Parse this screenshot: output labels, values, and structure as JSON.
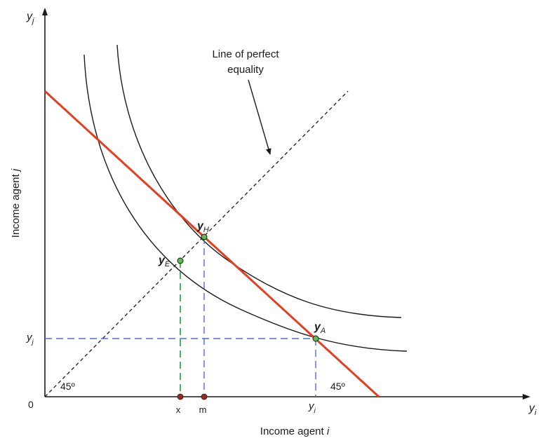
{
  "axes": {
    "y_axis_symbol": "y",
    "y_axis_sub": "j",
    "x_axis_symbol": "y",
    "x_axis_sub": "i",
    "origin": "0",
    "x_title_prefix": "Income agent ",
    "x_title_var": "i",
    "y_title_prefix": "Income agent ",
    "y_title_var": "j"
  },
  "annotation": {
    "line1": "Line of perfect",
    "line2": "equality"
  },
  "points": {
    "yH": {
      "symbol": "y",
      "sub": "H"
    },
    "yE": {
      "symbol": "y",
      "sub": "E"
    },
    "yA": {
      "symbol": "y",
      "sub": "A"
    }
  },
  "ticks": {
    "x": "x",
    "m": "m",
    "yi_symbol": "y",
    "yi_sub": "i",
    "yj_symbol": "y",
    "yj_sub": "j"
  },
  "angles": {
    "left": "45º",
    "right": "45º"
  },
  "colors": {
    "budget_line": "#e04020",
    "blue_dash": "#4a70c8",
    "green_dash": "#2a9a3a",
    "point_fill": "#5cbf4a",
    "axis_point": "#9a2a1a"
  }
}
